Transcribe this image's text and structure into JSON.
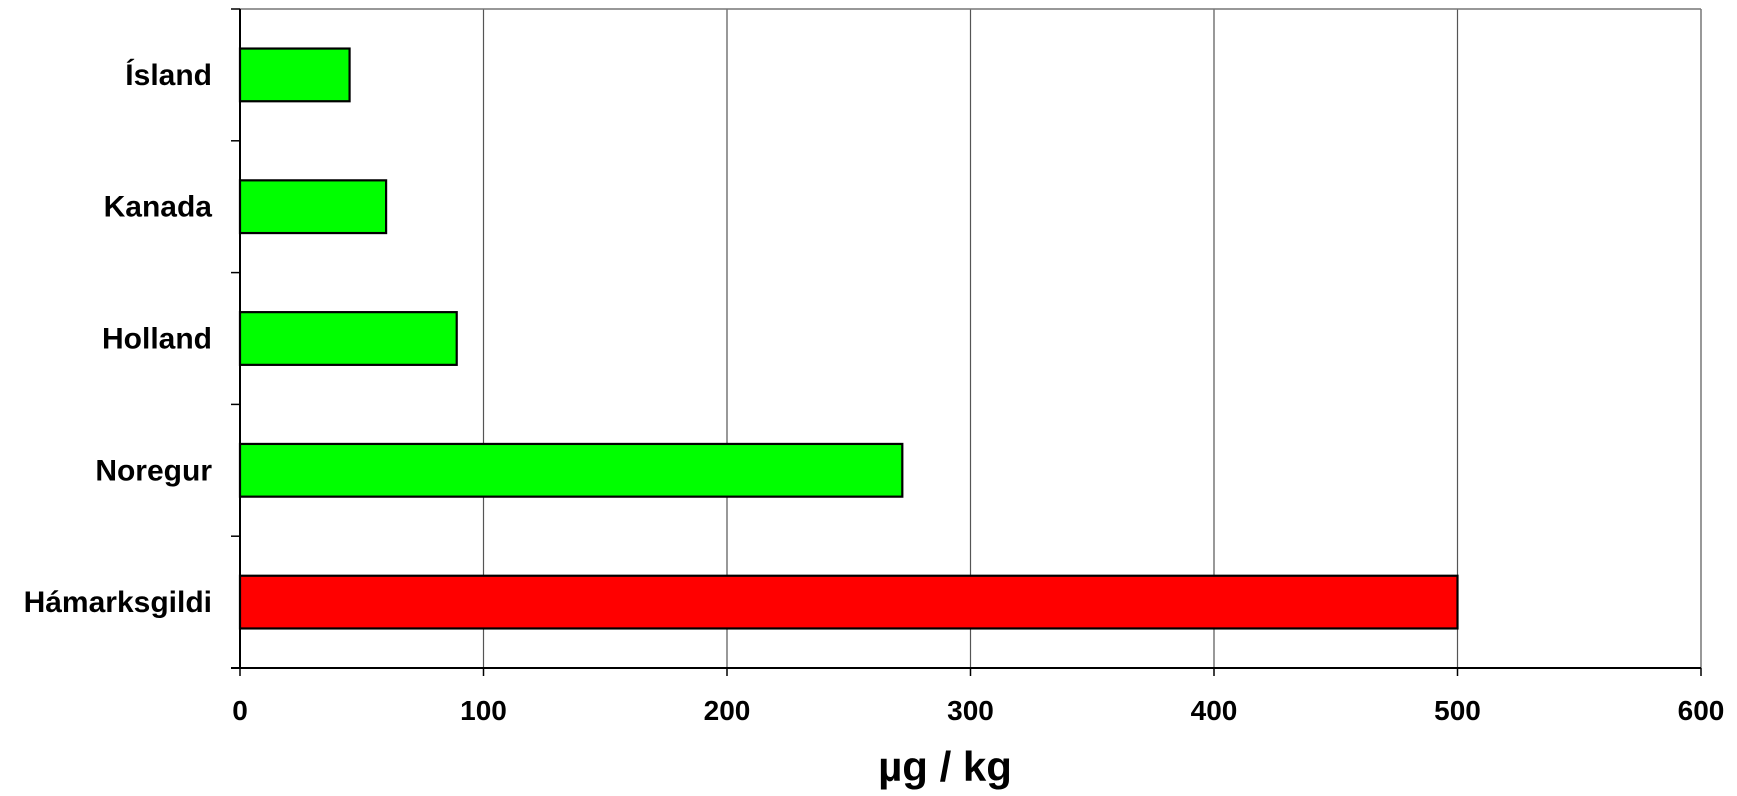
{
  "chart_data": {
    "type": "bar",
    "orientation": "horizontal",
    "title": "",
    "xlabel": "µg / kg",
    "ylabel": "",
    "categories": [
      "Ísland",
      "Kanada",
      "Holland",
      "Noregur",
      "Hámarksgildi"
    ],
    "values": [
      45,
      60,
      89,
      272,
      500
    ],
    "bar_colors": [
      "#00ff00",
      "#00ff00",
      "#00ff00",
      "#00ff00",
      "#ff0000"
    ],
    "xlim": [
      0,
      600
    ],
    "xticks": [
      0,
      100,
      200,
      300,
      400,
      500,
      600
    ],
    "grid": "vertical",
    "legend": "none"
  }
}
